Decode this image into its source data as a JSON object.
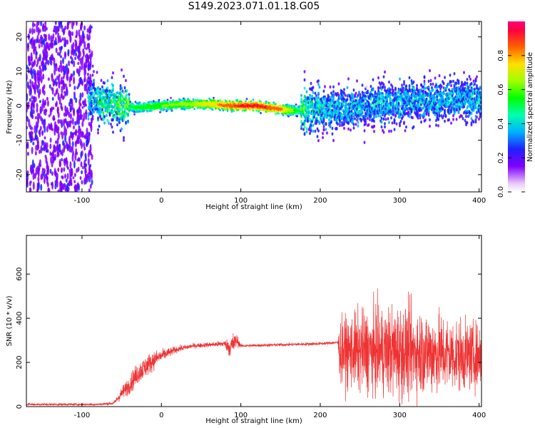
{
  "chart_data": [
    {
      "type": "heatmap",
      "title": "S149.2023.071.01.18.G05",
      "xlabel": "Height of straight line (km)",
      "ylabel": "Frequency (Hz)",
      "xlim": [
        -170,
        403
      ],
      "ylim": [
        -25,
        24.5
      ],
      "xticks": [
        -100,
        0,
        100,
        200,
        300,
        400
      ],
      "yticks": [
        -20,
        -10,
        0,
        10,
        20
      ],
      "colorbar": {
        "label": "Normalized spectral amplitude",
        "range": [
          0,
          1
        ],
        "ticks": [
          "0.0",
          "0.2",
          "0.4",
          "0.6",
          "0.8"
        ],
        "tick_values": [
          0.0,
          0.2,
          0.4,
          0.6,
          0.8
        ]
      },
      "ridge": {
        "x": [
          -90,
          -70,
          -50,
          -30,
          0,
          30,
          60,
          90,
          120,
          150,
          170,
          190,
          220,
          260,
          300,
          340,
          380,
          403
        ],
        "y": [
          2,
          1,
          0,
          -0.5,
          0,
          0.5,
          0.5,
          0,
          0,
          -1,
          -1.5,
          -1,
          -1,
          0,
          1,
          1.5,
          2,
          2
        ],
        "amplitude": [
          0.3,
          0.4,
          0.45,
          0.5,
          0.55,
          0.6,
          0.7,
          0.85,
          0.9,
          0.8,
          0.5,
          0.35,
          0.3,
          0.3,
          0.3,
          0.3,
          0.3,
          0.3
        ]
      },
      "grid": false
    },
    {
      "type": "line",
      "xlabel": "Height of straight line (km)",
      "ylabel": "SNR (10 * v/v)",
      "xlim": [
        -170,
        403
      ],
      "ylim": [
        0,
        775
      ],
      "xticks": [
        -100,
        0,
        100,
        200,
        300,
        400
      ],
      "yticks": [
        0,
        200,
        400,
        600
      ],
      "series": [
        {
          "color": "#ee3333",
          "envelope_x": [
            -170,
            -80,
            -60,
            -50,
            -40,
            -30,
            -20,
            -10,
            0,
            20,
            40,
            60,
            80,
            85,
            90,
            95,
            100,
            150,
            200,
            222,
            225,
            250,
            280,
            300,
            320,
            350,
            380,
            403
          ],
          "envelope_mean": [
            10,
            10,
            15,
            60,
            100,
            150,
            180,
            210,
            230,
            260,
            275,
            280,
            285,
            270,
            280,
            300,
            275,
            280,
            285,
            290,
            250,
            250,
            250,
            250,
            250,
            240,
            230,
            230
          ],
          "envelope_spread": [
            8,
            8,
            10,
            40,
            60,
            70,
            70,
            60,
            40,
            20,
            15,
            15,
            20,
            60,
            80,
            40,
            10,
            10,
            10,
            10,
            200,
            260,
            280,
            300,
            280,
            260,
            220,
            200
          ]
        }
      ],
      "grid": false
    }
  ]
}
